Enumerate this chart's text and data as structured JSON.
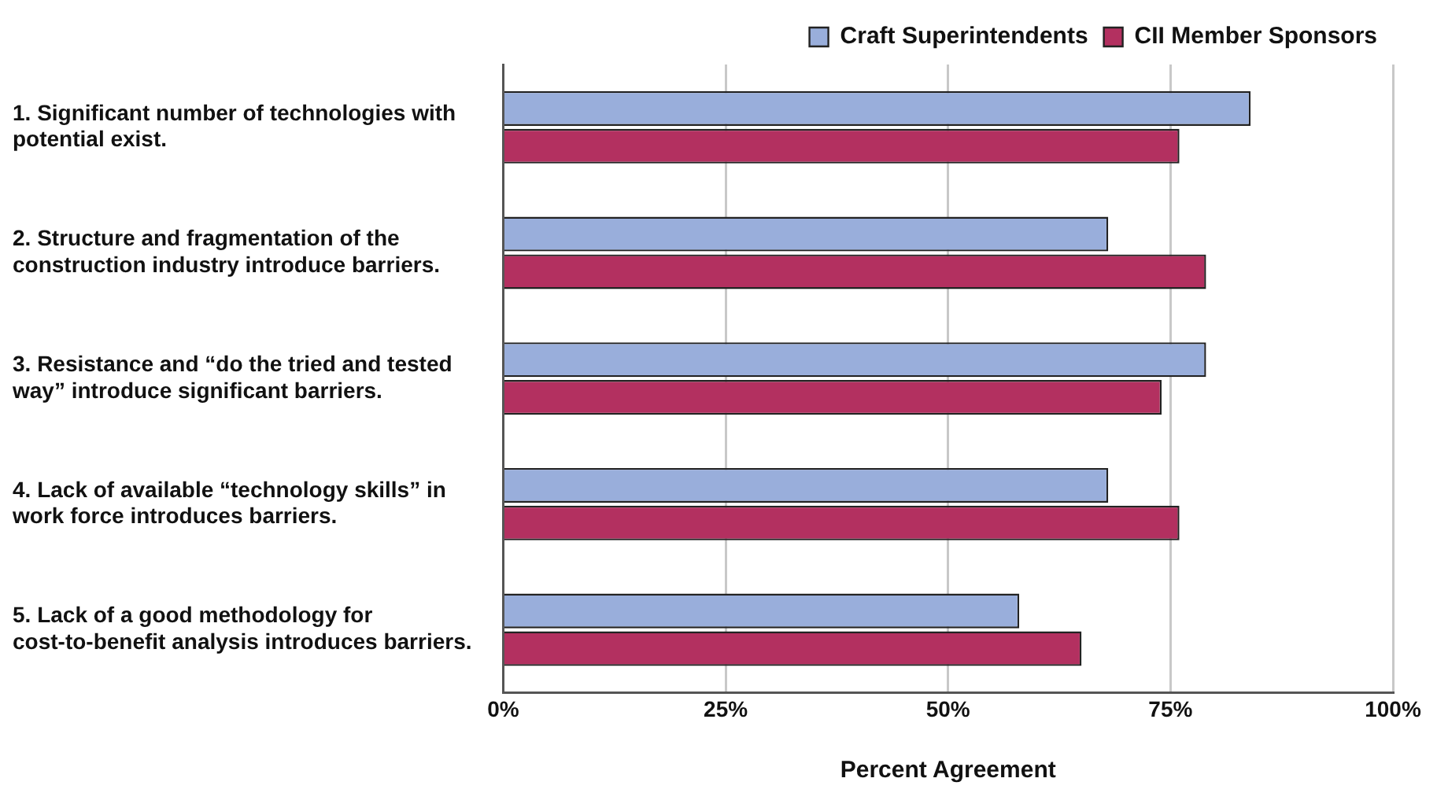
{
  "chart_data": {
    "type": "bar",
    "orientation": "horizontal",
    "xlabel": "Percent Agreement",
    "categories": [
      "1. Significant number of technologies with potential exist.",
      "2. Structure and fragmentation of the construction industry introduce barriers.",
      "3. Resistance and “do the tried and tested way” introduce significant barriers.",
      "4. Lack of available “technology skills” in work force introduces barriers.",
      "5. Lack of a good methodology for cost-to-benefit analysis introduces barriers."
    ],
    "series": [
      {
        "name": "Craft Superintendents",
        "color": "#99aedb",
        "values": [
          84,
          68,
          79,
          68,
          58
        ]
      },
      {
        "name": "CII Member Sponsors",
        "color": "#b33060",
        "values": [
          76,
          79,
          74,
          76,
          65
        ]
      }
    ],
    "xlim": [
      0,
      100
    ],
    "xticks": [
      {
        "value": 0,
        "label": "0%"
      },
      {
        "value": 25,
        "label": "25%"
      },
      {
        "value": 50,
        "label": "50%"
      },
      {
        "value": 75,
        "label": "75%"
      },
      {
        "value": 100,
        "label": "100%"
      }
    ],
    "grid": "x",
    "legend": "top right"
  }
}
